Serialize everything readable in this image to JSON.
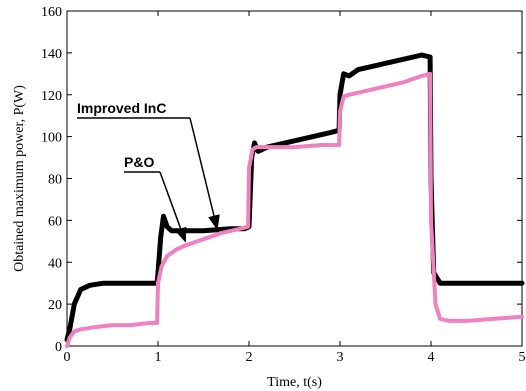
{
  "chart_data": {
    "type": "line",
    "xlabel": "Time, t(s)",
    "ylabel": "Obtained maximum power, P(W)",
    "xlim": [
      0,
      5
    ],
    "ylim": [
      0,
      160
    ],
    "x_ticks": [
      0,
      1,
      2,
      3,
      4,
      5
    ],
    "y_ticks": [
      0,
      20,
      40,
      60,
      80,
      100,
      120,
      140,
      160
    ],
    "grid": false,
    "legend": "none",
    "series": [
      {
        "name": "Improved InC",
        "color": "#000000",
        "x": [
          0,
          0.03,
          0.08,
          0.15,
          0.25,
          0.4,
          0.6,
          0.8,
          0.99,
          1.0,
          1.03,
          1.06,
          1.1,
          1.15,
          1.25,
          1.5,
          1.8,
          1.95,
          2.0,
          2.03,
          2.06,
          2.1,
          2.2,
          2.5,
          2.9,
          2.99,
          3.0,
          3.04,
          3.1,
          3.2,
          3.4,
          3.7,
          3.9,
          3.99,
          4.0,
          4.03,
          4.1,
          4.3,
          4.6,
          5.0
        ],
        "y": [
          3,
          8,
          20,
          27,
          29,
          30,
          30,
          30,
          30,
          35,
          52,
          62,
          57,
          55,
          55,
          55,
          56,
          56,
          57,
          90,
          97,
          93,
          95,
          98,
          102,
          103,
          120,
          130,
          129,
          132,
          134,
          137,
          139,
          138,
          80,
          35,
          30,
          30,
          30,
          30
        ]
      },
      {
        "name": "P&O",
        "color": "#f080c0",
        "x": [
          0,
          0.03,
          0.08,
          0.15,
          0.3,
          0.5,
          0.7,
          0.9,
          0.99,
          1.0,
          1.04,
          1.1,
          1.2,
          1.3,
          1.5,
          1.7,
          1.9,
          1.99,
          2.0,
          2.04,
          2.08,
          2.2,
          2.5,
          2.8,
          2.99,
          3.0,
          3.04,
          3.1,
          3.3,
          3.5,
          3.7,
          3.9,
          3.99,
          4.0,
          4.05,
          4.1,
          4.2,
          4.4,
          4.7,
          5.0
        ],
        "y": [
          0,
          4,
          7,
          8,
          9,
          10,
          10,
          11,
          11,
          30,
          38,
          43,
          46,
          48,
          51,
          54,
          56,
          57,
          85,
          94,
          95,
          95,
          95,
          96,
          96,
          112,
          119,
          120,
          122,
          124,
          126,
          129,
          130,
          60,
          20,
          13,
          12,
          12,
          13,
          14
        ]
      }
    ],
    "annotations": [
      {
        "text": "Improved InC",
        "arrow_to": [
          1.65,
          56
        ]
      },
      {
        "text": "P&O",
        "arrow_to": [
          1.3,
          50
        ]
      }
    ]
  }
}
